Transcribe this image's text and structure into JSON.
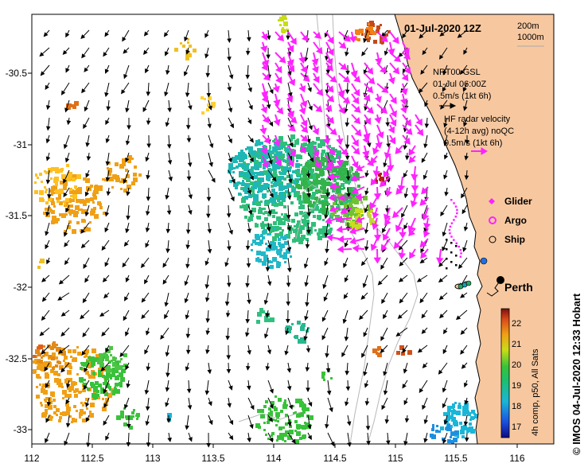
{
  "map": {
    "title": "01-Jul-2020 12Z",
    "depth_legend": [
      "200m",
      "1000m"
    ],
    "x_ticks": [
      "112",
      "112.5",
      "113",
      "113.5",
      "114",
      "114.5",
      "115",
      "115.5",
      "116"
    ],
    "y_ticks": [
      "-30.5",
      "-31",
      "-31.5",
      "-32",
      "-32.5",
      "-33"
    ],
    "gsl_legend": [
      "NRT00 GSL",
      "01-Jul 06:00Z",
      "0.5m/s (1kt 6h)"
    ],
    "hf_legend": [
      "HF radar velocity",
      "(4-12h avg) noQC",
      "0.5m/s (1kt 6h)"
    ],
    "markers": {
      "glider": "Glider",
      "argo": "Argo",
      "ship": "Ship"
    },
    "city": "Perth",
    "colorbar": {
      "ticks": [
        "22",
        "21",
        "20",
        "19",
        "18",
        "17"
      ],
      "label": "4h comp, p50, All Sats"
    },
    "credit": "© IMOS 04-Jul-2020 12:33 Hobart"
  },
  "colors": {
    "land": "#f7c8a0",
    "hf_arrow": "#ff22ff",
    "gsl_arrow": "#000000"
  }
}
